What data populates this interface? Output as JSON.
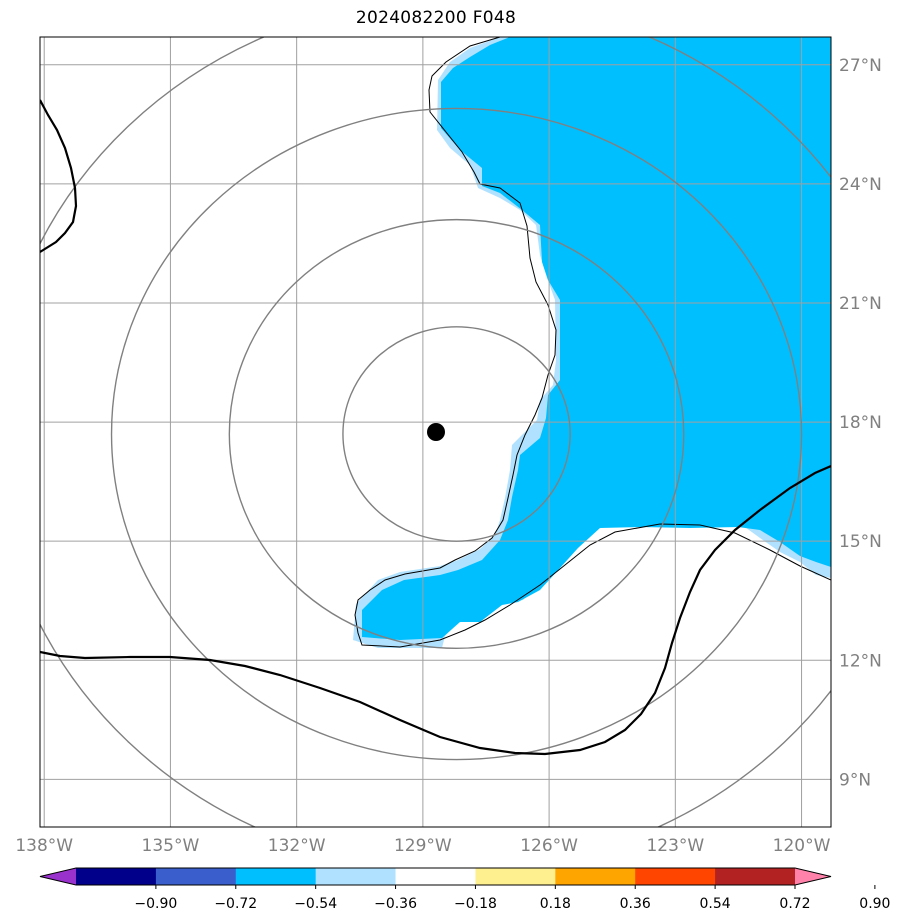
{
  "title": "2024082200 F048",
  "map": {
    "lon_range": [
      -138.1,
      -119.3
    ],
    "lat_range": [
      7.8,
      27.7
    ],
    "lon_ticks": [
      -138,
      -135,
      -132,
      -129,
      -126,
      -123,
      -120
    ],
    "lon_labels": [
      "138°W",
      "135°W",
      "132°W",
      "129°W",
      "126°W",
      "123°W",
      "120°W"
    ],
    "lat_ticks": [
      9,
      12,
      15,
      18,
      21,
      24,
      27
    ],
    "lat_labels": [
      "9°N",
      "12°N",
      "15°N",
      "18°N",
      "21°N",
      "24°N",
      "27°N"
    ],
    "center": {
      "lon": -128.2,
      "lat": 17.7
    },
    "range_rings_deg": [
      2.7,
      5.4,
      8.2,
      11.0
    ],
    "grid_color": "#a0a0a0",
    "ring_color": "#808080",
    "marker_color": "#000000"
  },
  "colorbar": {
    "levels": [
      "−0.90",
      "−0.72",
      "−0.54",
      "−0.36",
      "−0.18",
      "0.18",
      "0.36",
      "0.54",
      "0.72",
      "0.90"
    ],
    "colors": [
      "#9932cc",
      "#00008b",
      "#3a5fcd",
      "#00bfff",
      "#b0e2ff",
      "#ffffff",
      "#fff08f",
      "#ffa500",
      "#ff4500",
      "#b22222",
      "#ff82ab"
    ]
  }
}
